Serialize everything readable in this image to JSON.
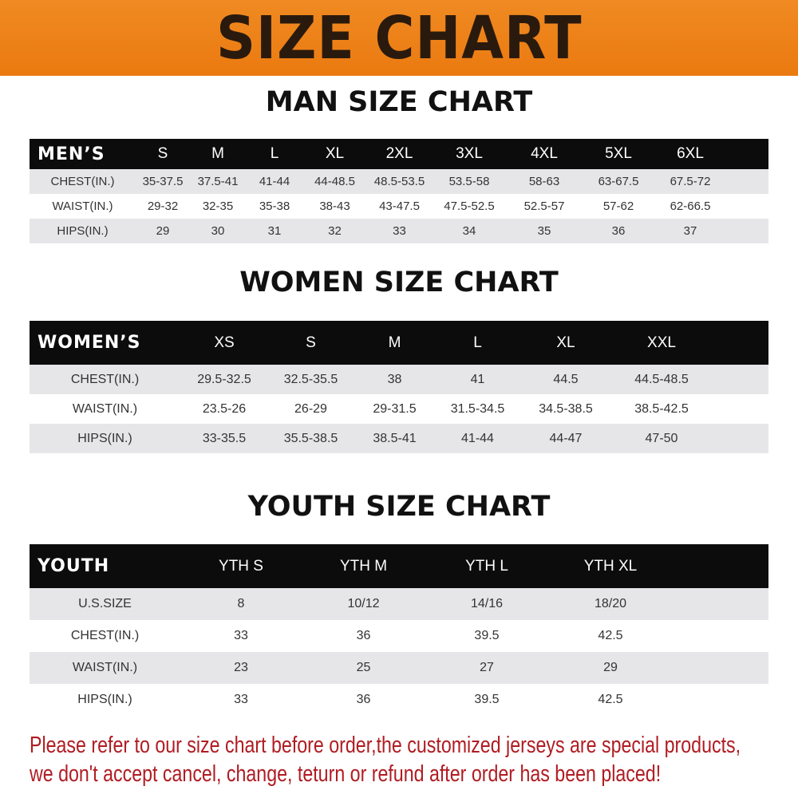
{
  "title": "SIZE CHART",
  "men": {
    "title": "MAN SIZE CHART",
    "header": [
      "MEN’S",
      "S",
      "M",
      "L",
      "XL",
      "2XL",
      "3XL",
      "4XL",
      "5XL",
      "6XL"
    ],
    "rows": [
      [
        "CHEST(IN.)",
        "35-37.5",
        "37.5-41",
        "41-44",
        "44-48.5",
        "48.5-53.5",
        "53.5-58",
        "58-63",
        "63-67.5",
        "67.5-72"
      ],
      [
        "WAIST(IN.)",
        "29-32",
        "32-35",
        "35-38",
        "38-43",
        "43-47.5",
        "47.5-52.5",
        "52.5-57",
        "57-62",
        "62-66.5"
      ],
      [
        "HIPS(IN.)",
        "29",
        "30",
        "31",
        "32",
        "33",
        "34",
        "35",
        "36",
        "37"
      ]
    ]
  },
  "women": {
    "title": "WOMEN SIZE CHART",
    "header": [
      "WOMEN’S",
      "XS",
      "S",
      "M",
      "L",
      "XL",
      "XXL"
    ],
    "rows": [
      [
        "CHEST(IN.)",
        "29.5-32.5",
        "32.5-35.5",
        "38",
        "41",
        "44.5",
        "44.5-48.5"
      ],
      [
        "WAIST(IN.)",
        "23.5-26",
        "26-29",
        "29-31.5",
        "31.5-34.5",
        "34.5-38.5",
        "38.5-42.5"
      ],
      [
        "HIPS(IN.)",
        "33-35.5",
        "35.5-38.5",
        "38.5-41",
        "41-44",
        "44-47",
        "47-50"
      ]
    ]
  },
  "youth": {
    "title": "YOUTH SIZE CHART",
    "header": [
      "YOUTH",
      "YTH S",
      "YTH M",
      "YTH L",
      "YTH XL"
    ],
    "rows": [
      [
        "U.S.SIZE",
        "8",
        "10/12",
        "14/16",
        "18/20"
      ],
      [
        "CHEST(IN.)",
        "33",
        "36",
        "39.5",
        "42.5"
      ],
      [
        "WAIST(IN.)",
        "23",
        "25",
        "27",
        "29"
      ],
      [
        "HIPS(IN.)",
        "33",
        "36",
        "39.5",
        "42.5"
      ]
    ]
  },
  "notice": [
    "Please refer to our size chart before order,the customized jerseys are special products,",
    "we don't accept cancel, change, teturn or refund after order has been placed!"
  ],
  "colors": {
    "banner": "#ee8018",
    "header_row": "#0c0c0c",
    "stripe": "#e6e6e8",
    "notice": "#b01c22"
  }
}
